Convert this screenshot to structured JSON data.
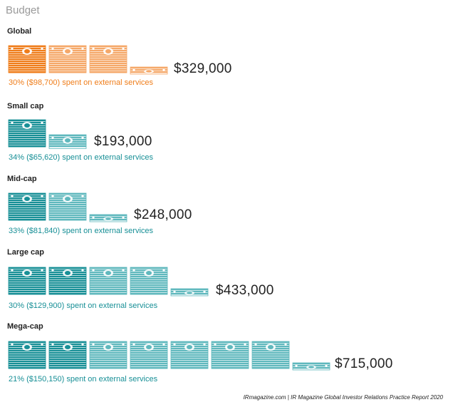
{
  "title": "Budget",
  "footer": "IRmagazine.com | IR Magazine Global Investor Relations Practice Report 2020",
  "colors": {
    "orange": "#ef7d1a",
    "orange_light": "#f5a869",
    "teal": "#178f96",
    "teal_light": "#5fb8bd"
  },
  "icon": "banknote-stack-icon",
  "chart_data": {
    "type": "pictograph",
    "unit_value": 100000,
    "unit_label": "stack of banknotes",
    "segments": [
      {
        "label": "Global",
        "total": 329000,
        "total_label": "$329,000",
        "external_share": 0.3,
        "external_amount": 98700,
        "external_label": "30% ($98,700) spent on external services",
        "color": "orange"
      },
      {
        "label": "Small cap",
        "total": 193000,
        "total_label": "$193,000",
        "external_share": 0.34,
        "external_amount": 65620,
        "external_label": "34% ($65,620) spent on external services",
        "color": "teal"
      },
      {
        "label": "Mid-cap",
        "total": 248000,
        "total_label": "$248,000",
        "external_share": 0.33,
        "external_amount": 81840,
        "external_label": "33% ($81,840) spent on external services",
        "color": "teal"
      },
      {
        "label": "Large cap",
        "total": 433000,
        "total_label": "$433,000",
        "external_share": 0.3,
        "external_amount": 129900,
        "external_label": "30% ($129,900) spent on external services",
        "color": "teal"
      },
      {
        "label": "Mega-cap",
        "total": 715000,
        "total_label": "$715,000",
        "external_share": 0.21,
        "external_amount": 150150,
        "external_label": "21% ($150,150) spent on external services",
        "color": "teal"
      }
    ]
  }
}
